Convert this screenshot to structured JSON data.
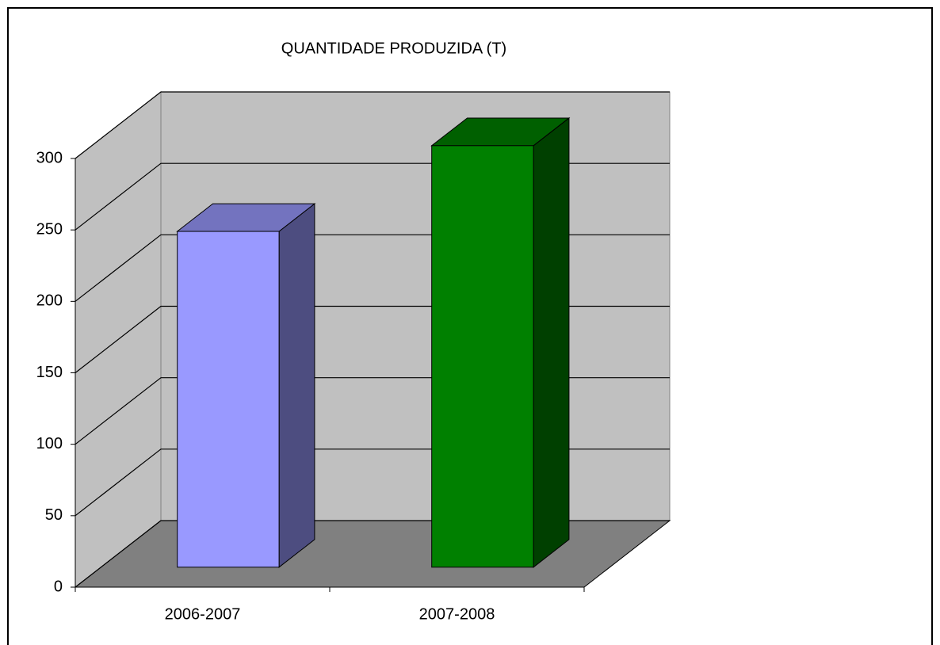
{
  "chart_data": {
    "type": "bar3d",
    "title": "QUANTIDADE PRODUZIDA (T)",
    "categories": [
      "2006-2007",
      "2007-2008"
    ],
    "values": [
      235,
      295
    ],
    "colors": [
      "#9999ff",
      "#008000"
    ],
    "ylim": [
      0,
      300
    ],
    "yticks": [
      0,
      50,
      100,
      150,
      200,
      250,
      300
    ],
    "grid": true
  }
}
